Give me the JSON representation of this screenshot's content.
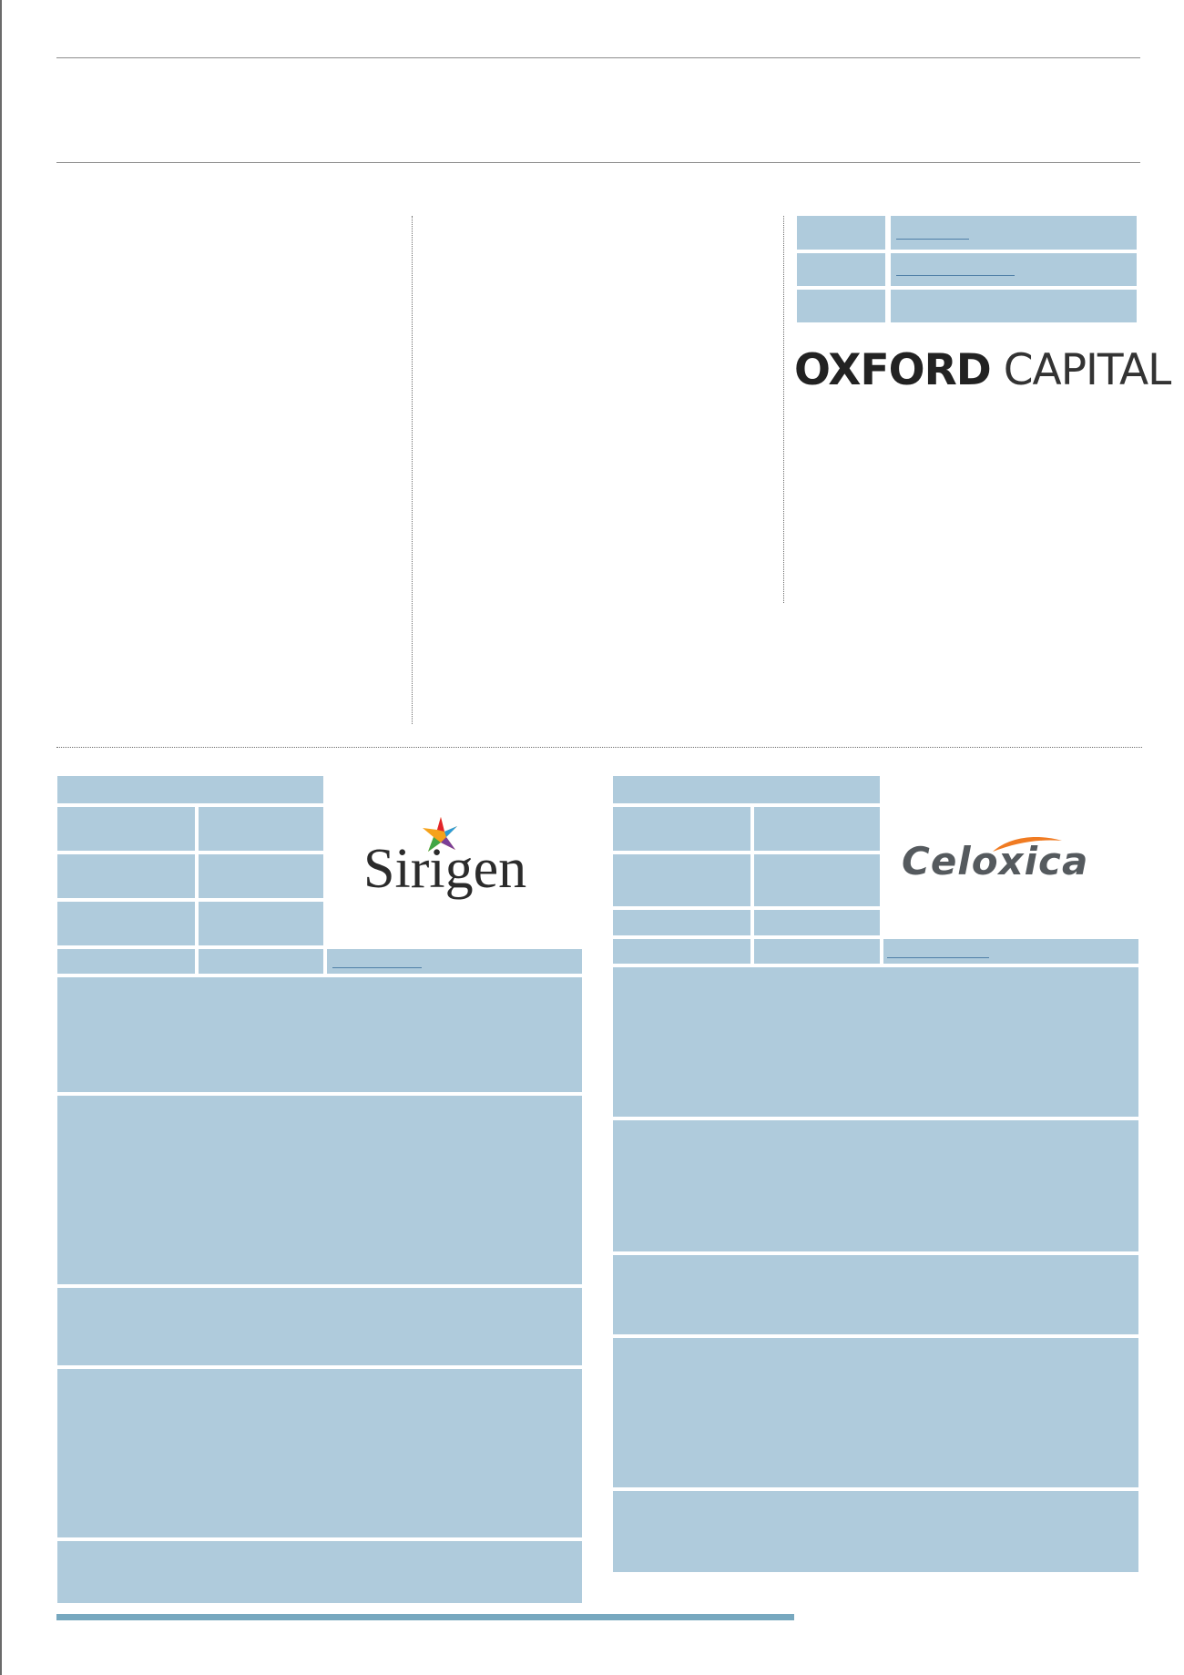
{
  "logos": {
    "oxford_capital": {
      "bold": "OXFORD",
      "light": "CAPITAL"
    },
    "sirigen": "Sirigen",
    "celoxica": "Celoxica"
  },
  "colors": {
    "table_fill": "#afcbdc",
    "rule": "#8c8c8c",
    "bottom_bar": "#77a8bf",
    "sirigen_star": [
      "#e2242b",
      "#f5a21b",
      "#2b9bd8",
      "#7a3e97",
      "#41a646"
    ],
    "celoxica_swoosh": "#f07b22"
  }
}
